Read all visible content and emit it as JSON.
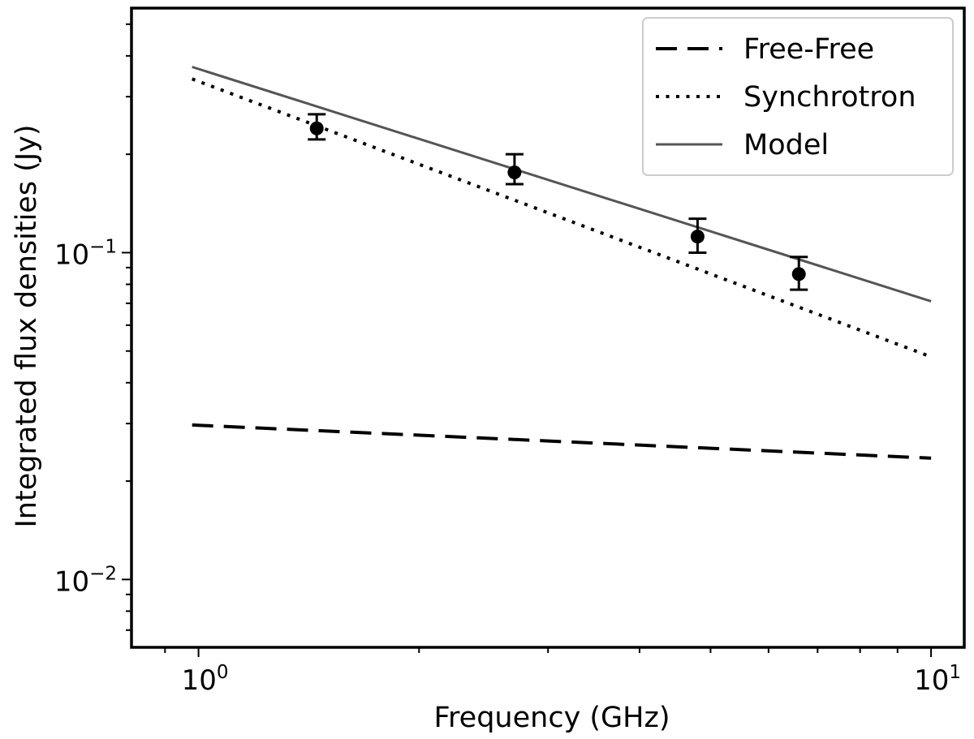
{
  "chart_data": {
    "type": "line",
    "title": "",
    "xlabel": "Frequency (GHz)",
    "ylabel": "Integrated flux densities (Jy)",
    "xscale": "log",
    "yscale": "log",
    "xlim": [
      0.81,
      11.1
    ],
    "ylim": [
      0.0062,
      0.56
    ],
    "x_ticks": [
      {
        "base": "10",
        "exp": "0",
        "value": 1
      },
      {
        "base": "10",
        "exp": "1",
        "value": 10
      }
    ],
    "y_ticks": [
      {
        "base": "10",
        "exp": "−1",
        "value": 0.1
      },
      {
        "base": "10",
        "exp": "−2",
        "value": 0.01
      }
    ],
    "grid": false,
    "legend_position": "top-right",
    "series": [
      {
        "name": "Free-Free",
        "style": "dashed",
        "color": "#000000",
        "x": [
          0.98,
          10
        ],
        "y": [
          0.0297,
          0.0235
        ]
      },
      {
        "name": "Synchrotron",
        "style": "dotted",
        "color": "#000000",
        "x": [
          0.98,
          10
        ],
        "y": [
          0.34,
          0.048
        ]
      },
      {
        "name": "Model",
        "style": "solid",
        "color": "#555555",
        "x": [
          0.98,
          10
        ],
        "y": [
          0.37,
          0.071
        ]
      }
    ],
    "observations": {
      "x": [
        1.45,
        2.7,
        4.8,
        6.6
      ],
      "y": [
        0.24,
        0.176,
        0.112,
        0.086
      ],
      "y_err_low": [
        0.222,
        0.162,
        0.1,
        0.077
      ],
      "y_err_high": [
        0.265,
        0.2,
        0.127,
        0.097
      ]
    }
  }
}
